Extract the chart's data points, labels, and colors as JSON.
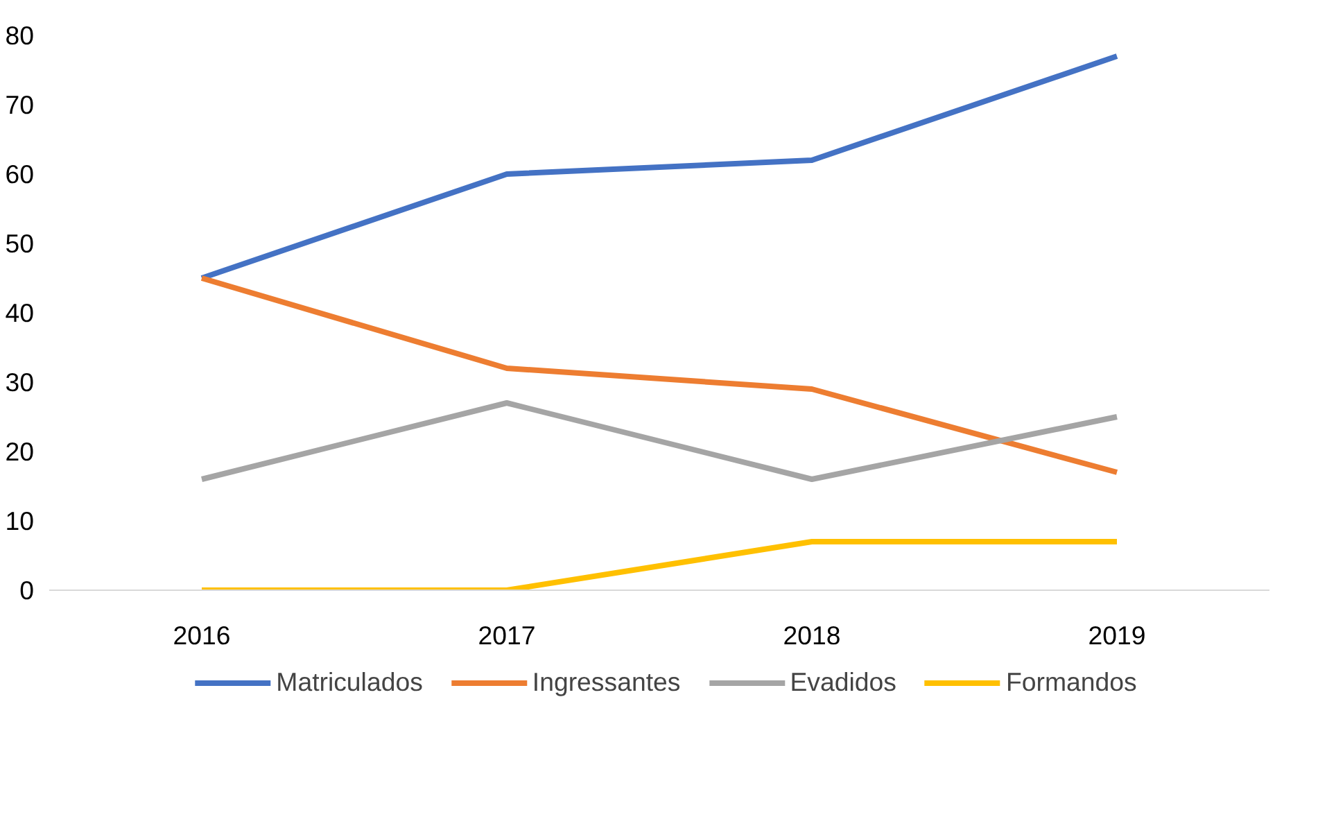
{
  "chart_data": {
    "type": "line",
    "categories": [
      "2016",
      "2017",
      "2018",
      "2019"
    ],
    "series": [
      {
        "name": "Matriculados",
        "color": "#4472c4",
        "values": [
          45,
          60,
          62,
          77
        ]
      },
      {
        "name": "Ingressantes",
        "color": "#ed7d31",
        "values": [
          45,
          32,
          29,
          17
        ]
      },
      {
        "name": "Evadidos",
        "color": "#a5a5a5",
        "values": [
          16,
          27,
          16,
          25
        ]
      },
      {
        "name": "Formandos",
        "color": "#ffc000",
        "values": [
          0,
          0,
          7,
          7
        ]
      }
    ],
    "ylim": [
      0,
      80
    ],
    "yticks": [
      0,
      10,
      20,
      30,
      40,
      50,
      60,
      70,
      80
    ],
    "grid": false,
    "legend": "bottom",
    "line_style": "solid",
    "marker": "none"
  }
}
